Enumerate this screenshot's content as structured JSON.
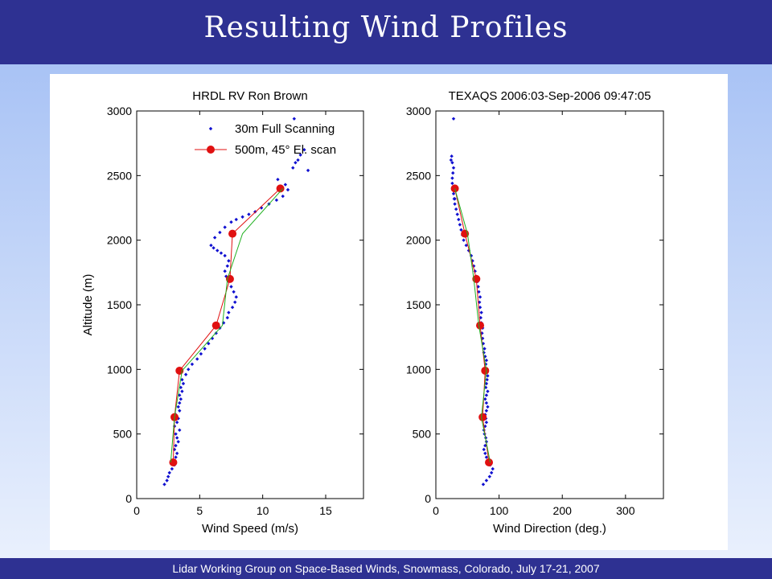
{
  "slide": {
    "title": "Resulting Wind Profiles",
    "footer": "Lidar Working Group on Space-Based Winds, Snowmass, Colorado, July 17-21, 2007"
  },
  "colors": {
    "header_bg": "#2e3192",
    "scan_points": "#1010d0",
    "fit_line": "#e01010",
    "green_line": "#20b020"
  },
  "chart_data": [
    {
      "type": "line",
      "title": "HRDL RV Ron Brown",
      "xlabel": "Wind Speed (m/s)",
      "ylabel": "Altitude (m)",
      "xlim": [
        0,
        18
      ],
      "ylim": [
        0,
        3000
      ],
      "xticks": [
        0,
        5,
        10,
        15
      ],
      "yticks": [
        0,
        500,
        1000,
        1500,
        2000,
        2500,
        3000
      ],
      "grid": false,
      "legend": {
        "placement": "top-right",
        "entries": [
          "30m Full Scanning",
          "500m, 45° El. scan"
        ]
      },
      "series": [
        {
          "name": "30m Full Scanning",
          "style": "points",
          "x": [
            2.2,
            2.4,
            2.5,
            2.6,
            2.8,
            3.0,
            3.0,
            3.1,
            3.2,
            3.0,
            3.1,
            3.3,
            3.2,
            3.1,
            3.4,
            3.0,
            3.2,
            3.3,
            3.1,
            3.4,
            3.3,
            3.4,
            3.5,
            3.4,
            3.6,
            3.5,
            3.7,
            3.6,
            3.9,
            4.1,
            4.4,
            4.8,
            5.1,
            5.4,
            5.7,
            6.0,
            6.3,
            6.6,
            6.9,
            7.2,
            7.3,
            7.6,
            7.8,
            7.9,
            7.7,
            7.5,
            7.3,
            7.1,
            7.0,
            7.2,
            7.3,
            7.0,
            6.7,
            6.4,
            6.1,
            5.9,
            6.2,
            6.6,
            7.0,
            7.5,
            7.9,
            8.4,
            8.9,
            9.4,
            9.9,
            10.5,
            11.1,
            11.6,
            12.0,
            11.8,
            11.2,
            12.4,
            12.6,
            12.8,
            13.0,
            13.3,
            13.6,
            12.5
          ],
          "y": [
            110,
            140,
            170,
            200,
            230,
            260,
            290,
            320,
            350,
            380,
            410,
            440,
            470,
            500,
            530,
            560,
            590,
            620,
            650,
            680,
            710,
            740,
            770,
            800,
            830,
            860,
            890,
            920,
            960,
            1000,
            1040,
            1080,
            1120,
            1160,
            1200,
            1240,
            1280,
            1320,
            1360,
            1400,
            1440,
            1480,
            1520,
            1560,
            1600,
            1640,
            1680,
            1720,
            1760,
            1800,
            1840,
            1880,
            1900,
            1920,
            1940,
            1960,
            2020,
            2060,
            2100,
            2140,
            2160,
            2180,
            2200,
            2220,
            2250,
            2280,
            2310,
            2340,
            2390,
            2430,
            2470,
            2560,
            2600,
            2620,
            2660,
            2700,
            2540,
            2940
          ]
        },
        {
          "name": "500m, 45° El. scan",
          "style": "line-markers",
          "x": [
            2.9,
            3.0,
            3.4,
            6.3,
            7.4,
            7.6,
            11.4
          ],
          "y": [
            280,
            630,
            990,
            1340,
            1700,
            2050,
            2400
          ]
        },
        {
          "style": "line",
          "x": [
            2.7,
            3.0,
            3.6,
            6.8,
            7.2,
            8.4,
            11.6
          ],
          "y": [
            280,
            630,
            990,
            1340,
            1700,
            2050,
            2400
          ]
        }
      ]
    },
    {
      "type": "line",
      "title": "TEXAQS 2006:03-Sep-2006 09:47:05",
      "xlabel": "Wind Direction (deg.)",
      "ylabel": "",
      "xlim": [
        0,
        360
      ],
      "ylim": [
        0,
        3000
      ],
      "xticks": [
        0,
        100,
        200,
        300
      ],
      "yticks": [
        0,
        500,
        1000,
        1500,
        2000,
        2500,
        3000
      ],
      "grid": false,
      "series": [
        {
          "style": "points",
          "x": [
            75,
            80,
            85,
            88,
            90,
            86,
            82,
            80,
            78,
            76,
            78,
            80,
            79,
            77,
            76,
            78,
            80,
            79,
            78,
            80,
            82,
            80,
            78,
            80,
            82,
            79,
            80,
            81,
            82,
            80,
            78,
            79,
            80,
            78,
            76,
            77,
            75,
            74,
            73,
            74,
            72,
            71,
            72,
            70,
            69,
            70,
            68,
            67,
            66,
            64,
            62,
            60,
            58,
            56,
            52,
            48,
            44,
            42,
            40,
            38,
            36,
            34,
            32,
            30,
            29,
            28,
            27,
            26,
            26,
            27,
            28,
            26,
            24,
            25,
            28,
            30
          ],
          "y": [
            110,
            140,
            170,
            200,
            230,
            260,
            290,
            320,
            350,
            380,
            410,
            440,
            470,
            500,
            530,
            560,
            590,
            620,
            650,
            680,
            710,
            740,
            770,
            800,
            830,
            860,
            890,
            920,
            950,
            980,
            1010,
            1040,
            1070,
            1100,
            1130,
            1160,
            1200,
            1240,
            1280,
            1320,
            1360,
            1400,
            1440,
            1480,
            1520,
            1560,
            1600,
            1640,
            1680,
            1720,
            1760,
            1800,
            1840,
            1880,
            1920,
            1960,
            2000,
            2040,
            2080,
            2120,
            2160,
            2200,
            2240,
            2280,
            2320,
            2360,
            2400,
            2440,
            2480,
            2520,
            2560,
            2600,
            2620,
            2650,
            2940,
            2320
          ]
        },
        {
          "style": "line-markers",
          "x": [
            84,
            74,
            78,
            70,
            64,
            46,
            30
          ],
          "y": [
            280,
            630,
            990,
            1340,
            1700,
            2050,
            2400
          ]
        },
        {
          "style": "line",
          "x": [
            86,
            72,
            80,
            68,
            60,
            50,
            30
          ],
          "y": [
            280,
            630,
            990,
            1340,
            1700,
            2050,
            2400
          ]
        }
      ]
    }
  ]
}
